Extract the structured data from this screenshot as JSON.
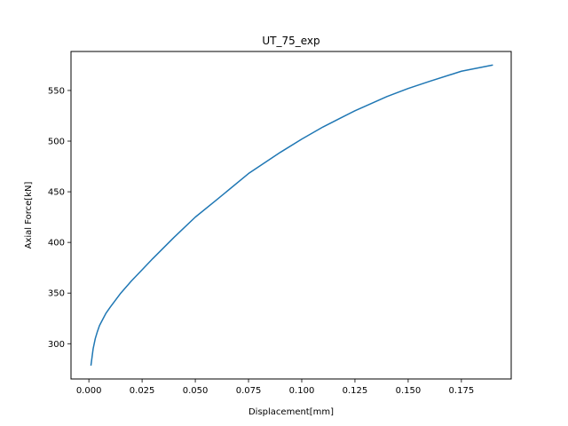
{
  "chart_data": {
    "type": "line",
    "title": "UT_75_exp",
    "xlabel": "Displacement[mm]",
    "ylabel": "Axial Force[kN]",
    "xlim": [
      -0.0084,
      0.1984
    ],
    "ylim": [
      265.2,
      588.5
    ],
    "xticks": [
      {
        "value": 0.0,
        "label": "0.000"
      },
      {
        "value": 0.025,
        "label": "0.025"
      },
      {
        "value": 0.05,
        "label": "0.050"
      },
      {
        "value": 0.075,
        "label": "0.075"
      },
      {
        "value": 0.1,
        "label": "0.100"
      },
      {
        "value": 0.125,
        "label": "0.125"
      },
      {
        "value": 0.15,
        "label": "0.150"
      },
      {
        "value": 0.175,
        "label": "0.175"
      }
    ],
    "yticks": [
      {
        "value": 300,
        "label": "300"
      },
      {
        "value": 350,
        "label": "350"
      },
      {
        "value": 400,
        "label": "400"
      },
      {
        "value": 450,
        "label": "450"
      },
      {
        "value": 500,
        "label": "500"
      },
      {
        "value": 550,
        "label": "550"
      }
    ],
    "grid": false,
    "colors": {
      "line": "#1f77b4"
    },
    "series": [
      {
        "x": [
          0.001,
          0.002,
          0.003,
          0.004,
          0.005,
          0.0065,
          0.008,
          0.01,
          0.0125,
          0.015,
          0.02,
          0.025,
          0.03,
          0.04,
          0.05,
          0.06,
          0.075,
          0.09,
          0.1,
          0.11,
          0.125,
          0.14,
          0.15,
          0.16,
          0.175,
          0.1895
        ],
        "y": [
          279.0,
          295.0,
          305.0,
          312.0,
          318.0,
          324.0,
          330.0,
          336.0,
          343.0,
          350.0,
          362.0,
          373.0,
          384.0,
          405.0,
          425.0,
          442.0,
          468.0,
          489.0,
          502.0,
          514.0,
          530.0,
          544.0,
          552.0,
          559.0,
          569.0,
          575.0
        ]
      }
    ]
  }
}
